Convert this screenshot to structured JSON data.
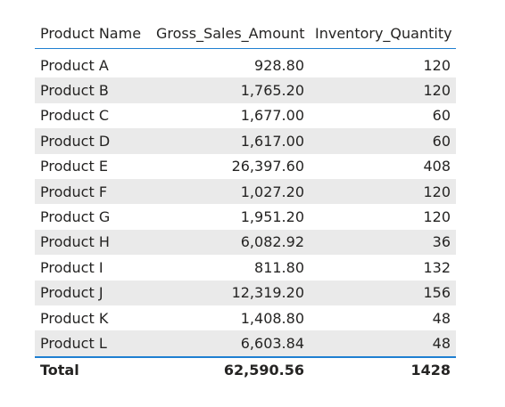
{
  "table": {
    "headers": [
      "Product Name",
      "Gross_Sales_Amount",
      "Inventory_Quantity"
    ],
    "rows": [
      [
        "Product A",
        "928.80",
        "120"
      ],
      [
        "Product B",
        "1,765.20",
        "120"
      ],
      [
        "Product C",
        "1,677.00",
        "60"
      ],
      [
        "Product D",
        "1,617.00",
        "60"
      ],
      [
        "Product E",
        "26,397.60",
        "408"
      ],
      [
        "Product F",
        "1,027.20",
        "120"
      ],
      [
        "Product G",
        "1,951.20",
        "120"
      ],
      [
        "Product H",
        "6,082.92",
        "36"
      ],
      [
        "Product I",
        "811.80",
        "132"
      ],
      [
        "Product J",
        "12,319.20",
        "156"
      ],
      [
        "Product K",
        "1,408.80",
        "48"
      ],
      [
        "Product L",
        "6,603.84",
        "48"
      ]
    ],
    "total": [
      "Total",
      "62,590.56",
      "1428"
    ]
  },
  "colors": {
    "accent_line": "#1f7fd1",
    "band_row": "#eaeaea",
    "text": "#252423"
  }
}
